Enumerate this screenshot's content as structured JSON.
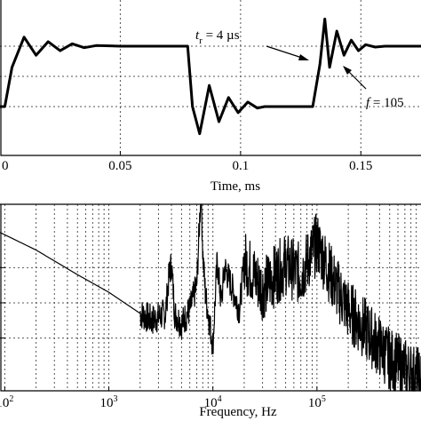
{
  "chart_data": [
    {
      "type": "line",
      "xlabel": "Time, ms",
      "ylabel": "",
      "title": "",
      "x_ticks": [
        0.05,
        0.1,
        0.15
      ],
      "x_tick_labels": [
        "0.05",
        "0.1",
        "0.15"
      ],
      "xlim": [
        0.0,
        0.175
      ],
      "grid": true,
      "series": [
        {
          "name": "",
          "description": "square pulse with ringing",
          "x": [
            0.0,
            0.002,
            0.005,
            0.01,
            0.015,
            0.02,
            0.025,
            0.03,
            0.035,
            0.04,
            0.05,
            0.06,
            0.07,
            0.075,
            0.078,
            0.08,
            0.083,
            0.087,
            0.091,
            0.095,
            0.099,
            0.103,
            0.107,
            0.11,
            0.12,
            0.13,
            0.133,
            0.135,
            0.137,
            0.14,
            0.143,
            0.146,
            0.149,
            0.152,
            0.156,
            0.16,
            0.175
          ],
          "values": [
            -1.0,
            -1.0,
            0.3,
            1.3,
            0.7,
            1.15,
            0.85,
            1.08,
            0.95,
            1.02,
            1.0,
            1.0,
            1.0,
            1.0,
            1.0,
            -1.0,
            -1.9,
            -0.3,
            -1.5,
            -0.7,
            -1.2,
            -0.85,
            -1.05,
            -1.0,
            -1.0,
            -1.0,
            0.4,
            1.9,
            0.3,
            1.5,
            0.7,
            1.2,
            0.85,
            1.05,
            0.97,
            1.0,
            1.0
          ]
        }
      ],
      "annotations": [
        {
          "text_main": "t",
          "text_sub": "r",
          "text_rest": " = 4 µs"
        },
        {
          "text_main": "f",
          "text_rest": " = 105"
        }
      ]
    },
    {
      "type": "line",
      "xlabel": "Frequency, Hz",
      "ylabel": "",
      "title": "",
      "x_scale": "log",
      "xlim": [
        90,
        1000000
      ],
      "x_ticks": [
        100,
        1000,
        10000,
        100000
      ],
      "x_tick_labels": [
        {
          "base": "10",
          "exp": "2"
        },
        {
          "base": "10",
          "exp": "3"
        },
        {
          "base": "10",
          "exp": "4"
        },
        {
          "base": "10",
          "exp": "5"
        }
      ],
      "grid": true,
      "series": [
        {
          "name": "",
          "description": "spectrum",
          "x": [
            90,
            200,
            500,
            1000,
            2000,
            2600,
            3000,
            3500,
            3800,
            4000,
            4300,
            5000,
            6000,
            7000,
            7700,
            8000,
            8500,
            10000,
            11000,
            12000,
            13000,
            15000,
            18000,
            20000,
            30000,
            50000,
            70000,
            100000,
            150000,
            200000,
            300000,
            500000,
            800000,
            1000000
          ],
          "values": [
            0,
            -0.5,
            -1.2,
            -1.7,
            -2.3,
            -2.5,
            -2.4,
            -2.3,
            -1.2,
            -0.9,
            -2.3,
            -2.6,
            -2.2,
            -1.5,
            1.3,
            -0.6,
            -1.8,
            -3.2,
            -0.8,
            -2.0,
            -1.0,
            -1.5,
            -2.2,
            -0.8,
            -1.6,
            -0.9,
            -1.2,
            -0.3,
            -1.5,
            -2.2,
            -2.8,
            -3.6,
            -4.0,
            -4.2
          ]
        }
      ]
    }
  ]
}
